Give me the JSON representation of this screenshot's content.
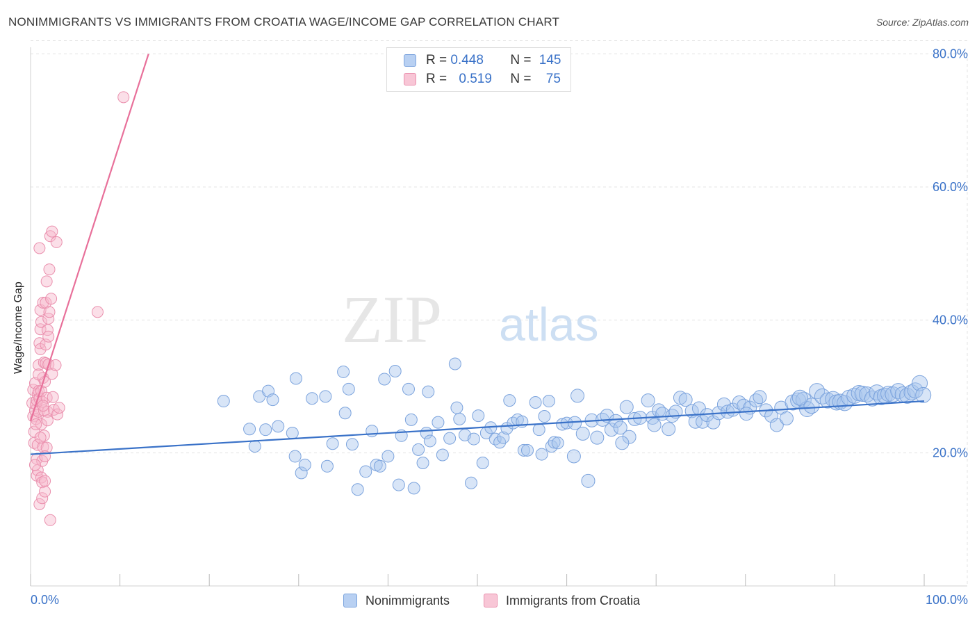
{
  "title": "NONIMMIGRANTS VS IMMIGRANTS FROM CROATIA WAGE/INCOME GAP CORRELATION CHART",
  "source": "Source: ZipAtlas.com",
  "watermark": {
    "zip": "ZIP",
    "atlas": "atlas"
  },
  "legend_box": {
    "rows": [
      {
        "r_label": "R = ",
        "r_value": "0.448",
        "n_label": "N = ",
        "n_value": "145"
      },
      {
        "r_label": "R = ",
        "r_value": "0.519",
        "n_label": "N = ",
        "n_value": "75"
      }
    ]
  },
  "colors": {
    "blue": "#3a72c8",
    "blue_fill": "#a8c6ee",
    "pink": "#e8709a",
    "pink_fill": "#f6b8cc",
    "grid": "#e3e3e3",
    "tick_text": "#3a72c8"
  },
  "chart_data": {
    "type": "scatter",
    "title": "NONIMMIGRANTS VS IMMIGRANTS FROM CROATIA WAGE/INCOME GAP CORRELATION CHART",
    "xlabel": "",
    "ylabel": "Wage/Income Gap",
    "xlim": [
      0,
      100
    ],
    "ylim": [
      0,
      82
    ],
    "x_tick_labels": [
      {
        "value": 0,
        "label": "0.0%"
      },
      {
        "value": 100,
        "label": "100.0%"
      }
    ],
    "y_tick_labels": [
      {
        "value": 20,
        "label": "20.0%"
      },
      {
        "value": 40,
        "label": "40.0%"
      },
      {
        "value": 60,
        "label": "60.0%"
      },
      {
        "value": 80,
        "label": "80.0%"
      }
    ],
    "x_minor_ticks": [
      0,
      10,
      20,
      30,
      40,
      50,
      60,
      70,
      80,
      90,
      100
    ],
    "grid": true,
    "legend_position": "bottom-center",
    "series": [
      {
        "name": "Nonimmigrants",
        "color": "#3a72c8",
        "trend": {
          "x": [
            0,
            100
          ],
          "y": [
            19.8,
            27.8
          ]
        },
        "points": [
          [
            21.6,
            27.8
          ],
          [
            24.5,
            23.6
          ],
          [
            25.1,
            21
          ],
          [
            25.6,
            28.5
          ],
          [
            26.3,
            23.5
          ],
          [
            26.6,
            29.3
          ],
          [
            27.1,
            28
          ],
          [
            27.7,
            24
          ],
          [
            29.3,
            23
          ],
          [
            29.6,
            19.5
          ],
          [
            29.7,
            31.2
          ],
          [
            30.3,
            17
          ],
          [
            30.7,
            18.2
          ],
          [
            31.5,
            28.2
          ],
          [
            33.2,
            18
          ],
          [
            33.8,
            21.4
          ],
          [
            35.0,
            32.2
          ],
          [
            35.2,
            26
          ],
          [
            35.6,
            29.6
          ],
          [
            36.0,
            21.3
          ],
          [
            36.6,
            14.5
          ],
          [
            37.5,
            17.2
          ],
          [
            38.2,
            23.3
          ],
          [
            38.7,
            18.2
          ],
          [
            39.1,
            18
          ],
          [
            39.6,
            31.1
          ],
          [
            40.0,
            19.5
          ],
          [
            40.8,
            32.3
          ],
          [
            41.2,
            15.2
          ],
          [
            41.5,
            22.6
          ],
          [
            42.3,
            29.6
          ],
          [
            42.6,
            25
          ],
          [
            42.9,
            14.7
          ],
          [
            43.4,
            20.5
          ],
          [
            43.9,
            18.5
          ],
          [
            44.3,
            23
          ],
          [
            44.7,
            21.8
          ],
          [
            45.6,
            24.6
          ],
          [
            46.1,
            19.7
          ],
          [
            46.9,
            22.2
          ],
          [
            47.5,
            33.4
          ],
          [
            47.7,
            26.8
          ],
          [
            48.0,
            25.1
          ],
          [
            48.6,
            22.7
          ],
          [
            49.3,
            15.5
          ],
          [
            49.6,
            22.1
          ],
          [
            50.1,
            25.6
          ],
          [
            50.6,
            18.5
          ],
          [
            51.0,
            23
          ],
          [
            51.5,
            23.8
          ],
          [
            52.0,
            22.1
          ],
          [
            52.5,
            21.6
          ],
          [
            52.9,
            22.3
          ],
          [
            53.3,
            23.7
          ],
          [
            53.6,
            27.9
          ],
          [
            54.0,
            24.5
          ],
          [
            54.5,
            25
          ],
          [
            55.2,
            20.4
          ],
          [
            55.6,
            20.4
          ],
          [
            56.5,
            27.6
          ],
          [
            56.9,
            23.5
          ],
          [
            57.5,
            25.5
          ],
          [
            58.0,
            27.8
          ],
          [
            58.3,
            21
          ],
          [
            58.6,
            21.6
          ],
          [
            59.0,
            21.5
          ],
          [
            59.5,
            24.3
          ],
          [
            60.0,
            24.5
          ],
          [
            60.8,
            19.5
          ],
          [
            60.9,
            24.5
          ],
          [
            61.2,
            28.6
          ],
          [
            61.8,
            22.9
          ],
          [
            62.4,
            15.8
          ],
          [
            62.8,
            24.9
          ],
          [
            63.4,
            22.3
          ],
          [
            64.0,
            25
          ],
          [
            64.5,
            25.6
          ],
          [
            65.0,
            23.5
          ],
          [
            65.5,
            24.8
          ],
          [
            66.0,
            23.8
          ],
          [
            66.7,
            26.9
          ],
          [
            67.0,
            22.4
          ],
          [
            67.6,
            25.1
          ],
          [
            68.2,
            25.3
          ],
          [
            69.1,
            27.9
          ],
          [
            69.6,
            25.3
          ],
          [
            70.3,
            26.4
          ],
          [
            70.7,
            25.9
          ],
          [
            71.4,
            23.6
          ],
          [
            71.8,
            25.6
          ],
          [
            72.2,
            26.2
          ],
          [
            72.7,
            28.3
          ],
          [
            73.3,
            28
          ],
          [
            74.0,
            26.3
          ],
          [
            74.4,
            24.7
          ],
          [
            74.8,
            26.7
          ],
          [
            75.2,
            24.7
          ],
          [
            75.7,
            25.7
          ],
          [
            76.4,
            24.6
          ],
          [
            77.0,
            26
          ],
          [
            77.6,
            27.3
          ],
          [
            78.0,
            26.2
          ],
          [
            78.6,
            26.5
          ],
          [
            79.3,
            27.6
          ],
          [
            79.8,
            27.1
          ],
          [
            80.5,
            26.8
          ],
          [
            81.2,
            27.9
          ],
          [
            81.6,
            28.4
          ],
          [
            82.3,
            26.4
          ],
          [
            82.9,
            25.6
          ],
          [
            83.5,
            24.2
          ],
          [
            84.0,
            26.8
          ],
          [
            84.6,
            25.2
          ],
          [
            85.3,
            27.6
          ],
          [
            85.9,
            27.9
          ],
          [
            86.5,
            28
          ],
          [
            86.9,
            26.6
          ],
          [
            87.4,
            27.1
          ],
          [
            88.0,
            29.3
          ],
          [
            88.6,
            28.5
          ],
          [
            89.2,
            27.9
          ],
          [
            89.8,
            28.1
          ],
          [
            90.2,
            27.6
          ],
          [
            90.6,
            27.7
          ],
          [
            91.1,
            27.5
          ],
          [
            91.6,
            28.3
          ],
          [
            92.2,
            28.6
          ],
          [
            92.7,
            29
          ],
          [
            93.1,
            28.9
          ],
          [
            93.6,
            28.8
          ],
          [
            94.2,
            28.2
          ],
          [
            94.7,
            29.1
          ],
          [
            95.2,
            28.4
          ],
          [
            95.6,
            28.6
          ],
          [
            96.0,
            28.9
          ],
          [
            96.5,
            28.8
          ],
          [
            97.1,
            29.3
          ],
          [
            97.6,
            28.8
          ],
          [
            98.1,
            28.6
          ],
          [
            98.6,
            29.1
          ],
          [
            99.0,
            29.4
          ],
          [
            99.5,
            30.5
          ],
          [
            99.9,
            28.7
          ],
          [
            66.2,
            21.5
          ],
          [
            80.1,
            25.9
          ],
          [
            33.0,
            28.5
          ],
          [
            44.5,
            29.2
          ],
          [
            57.2,
            19.8
          ],
          [
            86.1,
            28.3
          ],
          [
            69.8,
            24.2
          ],
          [
            55.0,
            24.7
          ]
        ]
      },
      {
        "name": "Immigrants from Croatia",
        "color": "#e8709a",
        "trend": {
          "x": [
            0,
            13.2
          ],
          "y": [
            24.8,
            80
          ]
        },
        "points": [
          [
            0.2,
            27.5
          ],
          [
            0.3,
            25.5
          ],
          [
            0.3,
            29.5
          ],
          [
            0.4,
            23.2
          ],
          [
            0.4,
            21.5
          ],
          [
            0.5,
            26.4
          ],
          [
            0.5,
            30.5
          ],
          [
            0.6,
            27.3
          ],
          [
            0.6,
            25.1
          ],
          [
            0.7,
            19.1
          ],
          [
            0.7,
            27.9
          ],
          [
            0.7,
            16.6
          ],
          [
            0.8,
            17.4
          ],
          [
            0.8,
            21.2
          ],
          [
            0.8,
            28.8
          ],
          [
            0.9,
            26.2
          ],
          [
            0.9,
            33.2
          ],
          [
            0.9,
            29.3
          ],
          [
            1.0,
            36.5
          ],
          [
            1.0,
            12.3
          ],
          [
            1.0,
            50.8
          ],
          [
            1.0,
            28.2
          ],
          [
            1.1,
            35.6
          ],
          [
            1.1,
            38.6
          ],
          [
            1.1,
            41.5
          ],
          [
            1.2,
            39.7
          ],
          [
            1.2,
            16.3
          ],
          [
            1.2,
            24.3
          ],
          [
            1.2,
            29.3
          ],
          [
            1.3,
            15.6
          ],
          [
            1.3,
            13.2
          ],
          [
            1.3,
            18.8
          ],
          [
            1.3,
            27.7
          ],
          [
            1.4,
            31.3
          ],
          [
            1.4,
            42.6
          ],
          [
            1.4,
            20.9
          ],
          [
            1.5,
            33.6
          ],
          [
            1.5,
            26.4
          ],
          [
            1.5,
            22.6
          ],
          [
            1.6,
            15.8
          ],
          [
            1.6,
            14.2
          ],
          [
            1.6,
            30.7
          ],
          [
            1.7,
            42.6
          ],
          [
            1.7,
            36.3
          ],
          [
            1.7,
            33.5
          ],
          [
            1.8,
            45.8
          ],
          [
            1.8,
            20.8
          ],
          [
            1.8,
            28.3
          ],
          [
            1.9,
            26.2
          ],
          [
            1.9,
            24.9
          ],
          [
            1.9,
            38.5
          ],
          [
            2.0,
            40.2
          ],
          [
            2.0,
            33.3
          ],
          [
            2.0,
            37.5
          ],
          [
            2.1,
            47.6
          ],
          [
            2.1,
            41.2
          ],
          [
            2.2,
            52.6
          ],
          [
            2.2,
            9.9
          ],
          [
            2.3,
            43.2
          ],
          [
            2.4,
            53.3
          ],
          [
            2.4,
            31.9
          ],
          [
            2.6,
            26.5
          ],
          [
            2.8,
            33.2
          ],
          [
            2.9,
            51.7
          ],
          [
            3.0,
            25.8
          ],
          [
            3.2,
            26.8
          ],
          [
            7.5,
            41.2
          ],
          [
            10.4,
            73.5
          ],
          [
            0.5,
            18.2
          ],
          [
            1.1,
            22.3
          ],
          [
            1.6,
            19.5
          ],
          [
            0.9,
            31.8
          ],
          [
            1.4,
            27.1
          ],
          [
            0.6,
            24.3
          ],
          [
            2.5,
            28.4
          ]
        ]
      }
    ]
  },
  "bottom_legend": {
    "items": [
      "Nonimmigrants",
      "Immigrants from Croatia"
    ]
  }
}
